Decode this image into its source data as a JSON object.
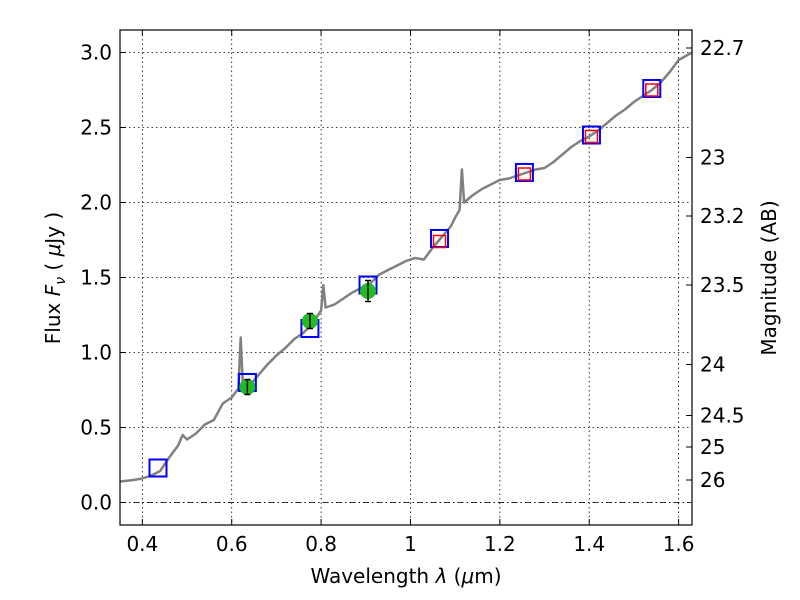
{
  "chart_data": {
    "type": "line",
    "xlabel_prefix": "Wavelength  ",
    "xlabel_symbol": "λ",
    "xlabel_units_open": " (",
    "xlabel_units_mu": "μ",
    "xlabel_units_rest": "m)",
    "ylabel_prefix": "Flux  ",
    "ylabel_symbol": "F",
    "ylabel_subscript": "ν",
    "ylabel_units_open": "  ( ",
    "ylabel_units_mu": "μ",
    "ylabel_units_rest": "Jy )",
    "y2label": "Magnitude (AB)",
    "xlim": [
      0.35,
      1.63
    ],
    "ylim": [
      -0.15,
      3.15
    ],
    "xticks": [
      0.4,
      0.6,
      0.8,
      1.0,
      1.2,
      1.4,
      1.6
    ],
    "xtick_labels": [
      "0.4",
      "0.6",
      "0.8",
      "1",
      "1.2",
      "1.4",
      "1.6"
    ],
    "yticks": [
      0.0,
      0.5,
      1.0,
      1.5,
      2.0,
      2.5,
      3.0
    ],
    "ytick_labels": [
      "0.0",
      "0.5",
      "1.0",
      "1.5",
      "2.0",
      "2.5",
      "3.0"
    ],
    "y2ticks": [
      {
        "label": "22.7",
        "flux": 3.03
      },
      {
        "label": "23",
        "flux": 2.3
      },
      {
        "label": "23.2",
        "flux": 1.91
      },
      {
        "label": "23.5",
        "flux": 1.45
      },
      {
        "label": "24",
        "flux": 0.92
      },
      {
        "label": "24.5",
        "flux": 0.58
      },
      {
        "label": "25",
        "flux": 0.37
      },
      {
        "label": "26",
        "flux": 0.15
      }
    ],
    "grid": true,
    "colors": {
      "spectrum": "#808080",
      "blue_box": "#0000ff",
      "red_box": "#ff0000",
      "green_point": "#22bb22",
      "errorbar": "#000000",
      "zero_line": "#000000"
    },
    "series": [
      {
        "values": [
          [
            0.35,
            0.14
          ],
          [
            0.38,
            0.15
          ],
          [
            0.4,
            0.16
          ],
          [
            0.42,
            0.18
          ],
          [
            0.44,
            0.21
          ],
          [
            0.46,
            0.3
          ],
          [
            0.48,
            0.38
          ],
          [
            0.49,
            0.45
          ],
          [
            0.5,
            0.42
          ],
          [
            0.52,
            0.46
          ],
          [
            0.54,
            0.52
          ],
          [
            0.56,
            0.55
          ],
          [
            0.58,
            0.66
          ],
          [
            0.6,
            0.7
          ],
          [
            0.615,
            0.76
          ],
          [
            0.62,
            1.1
          ],
          [
            0.625,
            0.78
          ],
          [
            0.64,
            0.78
          ],
          [
            0.66,
            0.85
          ],
          [
            0.68,
            0.92
          ],
          [
            0.7,
            0.98
          ],
          [
            0.72,
            1.03
          ],
          [
            0.74,
            1.09
          ],
          [
            0.76,
            1.13
          ],
          [
            0.78,
            1.19
          ],
          [
            0.8,
            1.28
          ],
          [
            0.805,
            1.45
          ],
          [
            0.81,
            1.3
          ],
          [
            0.83,
            1.32
          ],
          [
            0.85,
            1.36
          ],
          [
            0.87,
            1.4
          ],
          [
            0.89,
            1.43
          ],
          [
            0.91,
            1.46
          ],
          [
            0.93,
            1.52
          ],
          [
            0.95,
            1.55
          ],
          [
            0.97,
            1.58
          ],
          [
            0.99,
            1.61
          ],
          [
            1.01,
            1.63
          ],
          [
            1.03,
            1.62
          ],
          [
            1.05,
            1.7
          ],
          [
            1.07,
            1.77
          ],
          [
            1.09,
            1.84
          ],
          [
            1.1,
            1.9
          ],
          [
            1.11,
            1.95
          ],
          [
            1.115,
            2.22
          ],
          [
            1.12,
            2.0
          ],
          [
            1.14,
            2.05
          ],
          [
            1.16,
            2.09
          ],
          [
            1.18,
            2.12
          ],
          [
            1.2,
            2.15
          ],
          [
            1.22,
            2.16
          ],
          [
            1.24,
            2.18
          ],
          [
            1.26,
            2.2
          ],
          [
            1.28,
            2.22
          ],
          [
            1.3,
            2.23
          ],
          [
            1.32,
            2.27
          ],
          [
            1.34,
            2.32
          ],
          [
            1.36,
            2.37
          ],
          [
            1.38,
            2.41
          ],
          [
            1.4,
            2.44
          ],
          [
            1.42,
            2.48
          ],
          [
            1.44,
            2.53
          ],
          [
            1.46,
            2.58
          ],
          [
            1.48,
            2.62
          ],
          [
            1.5,
            2.67
          ],
          [
            1.52,
            2.71
          ],
          [
            1.54,
            2.75
          ],
          [
            1.56,
            2.8
          ],
          [
            1.58,
            2.87
          ],
          [
            1.6,
            2.95
          ],
          [
            1.63,
            3.0
          ]
        ]
      }
    ],
    "blue_boxes": [
      {
        "x": 0.435,
        "y": 0.23
      },
      {
        "x": 0.635,
        "y": 0.8
      },
      {
        "x": 0.775,
        "y": 1.16
      },
      {
        "x": 0.905,
        "y": 1.45
      },
      {
        "x": 1.065,
        "y": 1.76
      },
      {
        "x": 1.255,
        "y": 2.2
      },
      {
        "x": 1.405,
        "y": 2.45
      },
      {
        "x": 1.54,
        "y": 2.76
      }
    ],
    "red_boxes": [
      {
        "x": 1.065,
        "y": 1.74
      },
      {
        "x": 1.255,
        "y": 2.19
      },
      {
        "x": 1.405,
        "y": 2.44
      },
      {
        "x": 1.54,
        "y": 2.75
      }
    ],
    "green_points": [
      {
        "x": 0.635,
        "y": 0.77,
        "err": 0.05
      },
      {
        "x": 0.775,
        "y": 1.21,
        "err": 0.05
      },
      {
        "x": 0.905,
        "y": 1.41,
        "err": 0.07
      }
    ]
  }
}
